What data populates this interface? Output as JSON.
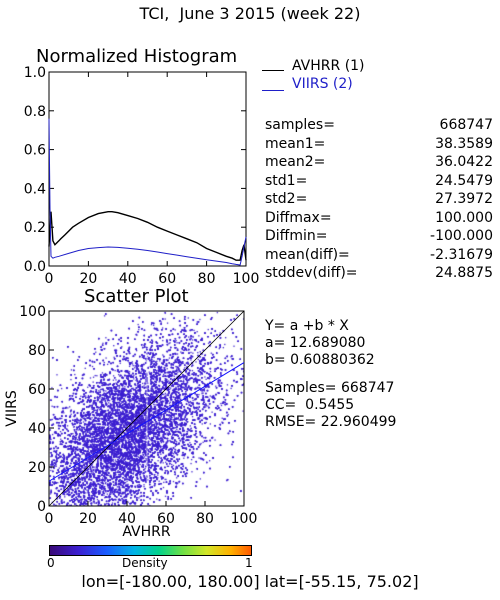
{
  "title": "TCI,  June 3 2015 (week 22)",
  "footer": "lon=[-180.00, 180.00] lat=[-55.15, 75.02]",
  "colors": {
    "series1": "#000000",
    "series2": "#1f1fc8"
  },
  "stats": [
    {
      "name": "samples=",
      "value": "668747"
    },
    {
      "name": "mean1=",
      "value": "38.3589"
    },
    {
      "name": "mean2=",
      "value": "36.0422"
    },
    {
      "name": "std1=",
      "value": "24.5479"
    },
    {
      "name": "std2=",
      "value": "27.3972"
    },
    {
      "name": "Diffmax=",
      "value": "100.000"
    },
    {
      "name": "Diffmin=",
      "value": "-100.000"
    },
    {
      "name": "mean(diff)=",
      "value": "-2.31679"
    },
    {
      "name": "stddev(diff)=",
      "value": "24.8875"
    }
  ],
  "fit": {
    "equation": "Y= a +b * X",
    "a": "a= 12.689080",
    "b": "b= 0.60880362",
    "samples": "Samples= 668747",
    "cc": "CC=  0.5455",
    "rmse": "RMSE= 22.960499"
  },
  "chart_data": [
    {
      "type": "line",
      "title": "Normalized Histogram",
      "xlim": [
        0,
        100
      ],
      "ylim": [
        0.0,
        1.0
      ],
      "xticks": [
        "0",
        "20",
        "40",
        "60",
        "80",
        "100"
      ],
      "yticks": [
        "0.0",
        "0.2",
        "0.4",
        "0.6",
        "0.8",
        "1.0"
      ],
      "series": [
        {
          "name": "AVHRR (1)",
          "color": "#000000",
          "x": [
            0,
            1,
            2,
            3,
            4,
            5,
            6,
            8,
            10,
            12,
            15,
            20,
            25,
            30,
            32,
            35,
            40,
            45,
            50,
            55,
            60,
            65,
            70,
            75,
            80,
            85,
            90,
            93,
            95,
            97,
            98,
            99,
            100
          ],
          "y": [
            0.1,
            0.28,
            0.13,
            0.11,
            0.12,
            0.13,
            0.14,
            0.16,
            0.18,
            0.2,
            0.22,
            0.25,
            0.27,
            0.28,
            0.28,
            0.275,
            0.26,
            0.245,
            0.225,
            0.2,
            0.18,
            0.16,
            0.14,
            0.12,
            0.09,
            0.07,
            0.05,
            0.04,
            0.03,
            0.03,
            0.08,
            0.11,
            0.03
          ]
        },
        {
          "name": "VIIRS (2)",
          "color": "#1f1fc8",
          "x": [
            0,
            0.5,
            1,
            2,
            3,
            5,
            10,
            15,
            20,
            25,
            30,
            35,
            40,
            45,
            50,
            55,
            60,
            65,
            70,
            75,
            80,
            85,
            90,
            93,
            95,
            97,
            98,
            99,
            100
          ],
          "y": [
            0.76,
            0.3,
            0.05,
            0.04,
            0.045,
            0.05,
            0.065,
            0.08,
            0.09,
            0.095,
            0.098,
            0.096,
            0.092,
            0.086,
            0.08,
            0.072,
            0.064,
            0.056,
            0.048,
            0.04,
            0.032,
            0.025,
            0.018,
            0.012,
            0.008,
            0.005,
            0.05,
            0.1,
            0.15
          ]
        }
      ]
    },
    {
      "type": "scatter",
      "title": "Scatter Plot",
      "xlabel": "AVHRR",
      "ylabel": "VIIRS",
      "xlim": [
        0,
        100
      ],
      "ylim": [
        0,
        100
      ],
      "xticks": [
        "0",
        "20",
        "40",
        "60",
        "80",
        "100"
      ],
      "yticks": [
        "0",
        "20",
        "40",
        "60",
        "80",
        "100"
      ],
      "points": 668747,
      "cloud": {
        "mean_x": 38.36,
        "mean_y": 36.04,
        "std_x": 24.55,
        "std_y": 27.4,
        "cc": 0.5455
      },
      "fit_line": {
        "a": 12.68908,
        "b": 0.60880362
      },
      "identity_line": true,
      "colorbar": {
        "label": "Density",
        "min": "0",
        "max": "1"
      }
    }
  ]
}
